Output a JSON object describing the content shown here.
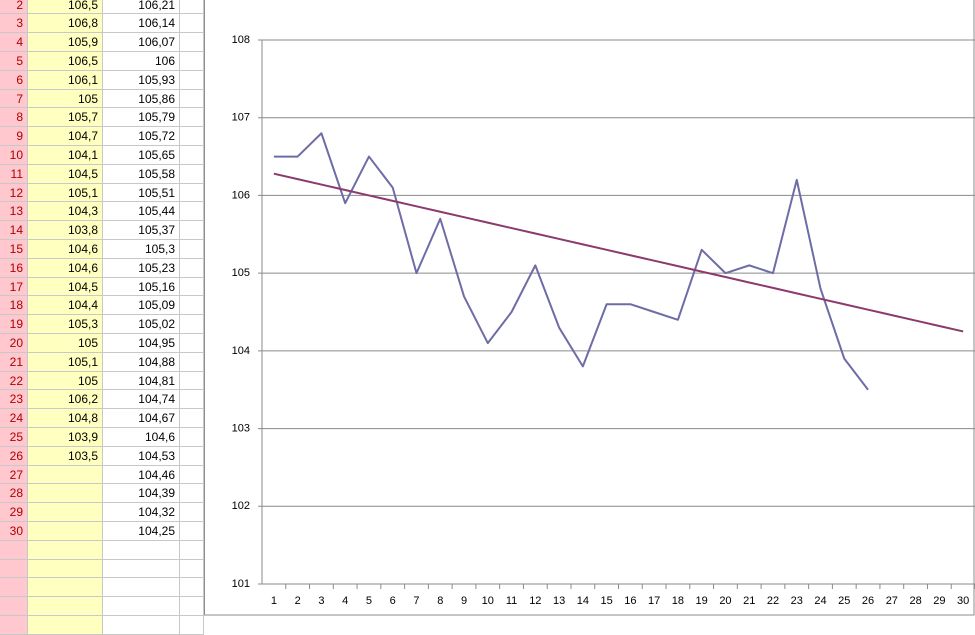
{
  "table": {
    "rows": [
      [
        "2",
        "106,5",
        "106,21"
      ],
      [
        "3",
        "106,8",
        "106,14"
      ],
      [
        "4",
        "105,9",
        "106,07"
      ],
      [
        "5",
        "106,5",
        "106"
      ],
      [
        "6",
        "106,1",
        "105,93"
      ],
      [
        "7",
        "105",
        "105,86"
      ],
      [
        "8",
        "105,7",
        "105,79"
      ],
      [
        "9",
        "104,7",
        "105,72"
      ],
      [
        "10",
        "104,1",
        "105,65"
      ],
      [
        "11",
        "104,5",
        "105,58"
      ],
      [
        "12",
        "105,1",
        "105,51"
      ],
      [
        "13",
        "104,3",
        "105,44"
      ],
      [
        "14",
        "103,8",
        "105,37"
      ],
      [
        "15",
        "104,6",
        "105,3"
      ],
      [
        "16",
        "104,6",
        "105,23"
      ],
      [
        "17",
        "104,5",
        "105,16"
      ],
      [
        "18",
        "104,4",
        "105,09"
      ],
      [
        "19",
        "105,3",
        "105,02"
      ],
      [
        "20",
        "105",
        "104,95"
      ],
      [
        "21",
        "105,1",
        "104,88"
      ],
      [
        "22",
        "105",
        "104,81"
      ],
      [
        "23",
        "106,2",
        "104,74"
      ],
      [
        "24",
        "104,8",
        "104,67"
      ],
      [
        "25",
        "103,9",
        "104,6"
      ],
      [
        "26",
        "103,5",
        "104,53"
      ],
      [
        "27",
        null,
        "104,46"
      ],
      [
        "28",
        null,
        "104,39"
      ],
      [
        "29",
        null,
        "104,32"
      ],
      [
        "30",
        null,
        "104,25"
      ]
    ]
  },
  "chart_data": {
    "type": "line",
    "categories": [
      1,
      2,
      3,
      4,
      5,
      6,
      7,
      8,
      9,
      10,
      11,
      12,
      13,
      14,
      15,
      16,
      17,
      18,
      19,
      20,
      21,
      22,
      23,
      24,
      25,
      26,
      27,
      28,
      29,
      30
    ],
    "series": [
      {
        "color": "#6e6ca6",
        "values": [
          106.5,
          106.5,
          106.8,
          105.9,
          106.5,
          106.1,
          105,
          105.7,
          104.7,
          104.1,
          104.5,
          105.1,
          104.3,
          103.8,
          104.6,
          104.6,
          104.5,
          104.4,
          105.3,
          105,
          105.1,
          105,
          106.2,
          104.8,
          103.9,
          103.5,
          null,
          null,
          null,
          null
        ]
      },
      {
        "color": "#8c3a6c",
        "values": [
          106.28,
          106.21,
          106.14,
          106.07,
          106,
          105.93,
          105.86,
          105.79,
          105.72,
          105.65,
          105.58,
          105.51,
          105.44,
          105.37,
          105.3,
          105.23,
          105.16,
          105.09,
          105.02,
          104.95,
          104.88,
          104.81,
          104.74,
          104.67,
          104.6,
          104.53,
          104.46,
          104.39,
          104.32,
          104.25
        ]
      }
    ],
    "ylim": [
      101,
      108
    ],
    "yticks": [
      101,
      102,
      103,
      104,
      105,
      106,
      107,
      108
    ],
    "grid": true
  }
}
